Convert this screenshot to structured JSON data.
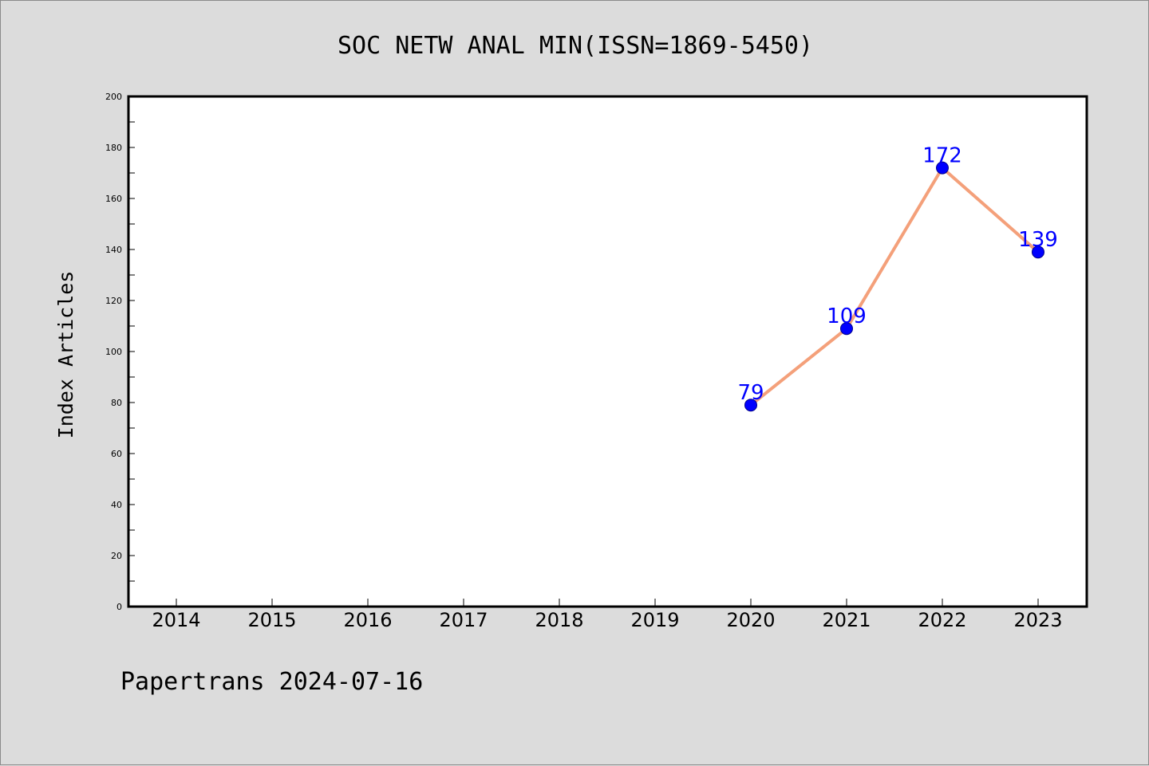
{
  "chart_data": {
    "type": "line",
    "title": "SOC NETW ANAL MIN(ISSN=1869-5450)",
    "ylabel": "Index Articles",
    "categories": [
      "2014",
      "2015",
      "2016",
      "2017",
      "2018",
      "2019",
      "2020",
      "2021",
      "2022",
      "2023"
    ],
    "yticks": [
      0,
      20,
      40,
      60,
      80,
      100,
      120,
      140,
      160,
      180,
      200
    ],
    "ylim": [
      0,
      200
    ],
    "grid": false,
    "series": [
      {
        "x": [
          "2020",
          "2021",
          "2022",
          "2023"
        ],
        "values": [
          79,
          109,
          172,
          139
        ],
        "data_labels": [
          "79",
          "109",
          "172",
          "139"
        ],
        "line_color": "#f4a07a",
        "marker_color": "#0000ff"
      }
    ]
  },
  "footer": {
    "text": "Papertrans 2024-07-16"
  },
  "colors": {
    "background": "#dcdcdc",
    "plot_background": "#ffffff",
    "label_color": "#0000ff"
  }
}
